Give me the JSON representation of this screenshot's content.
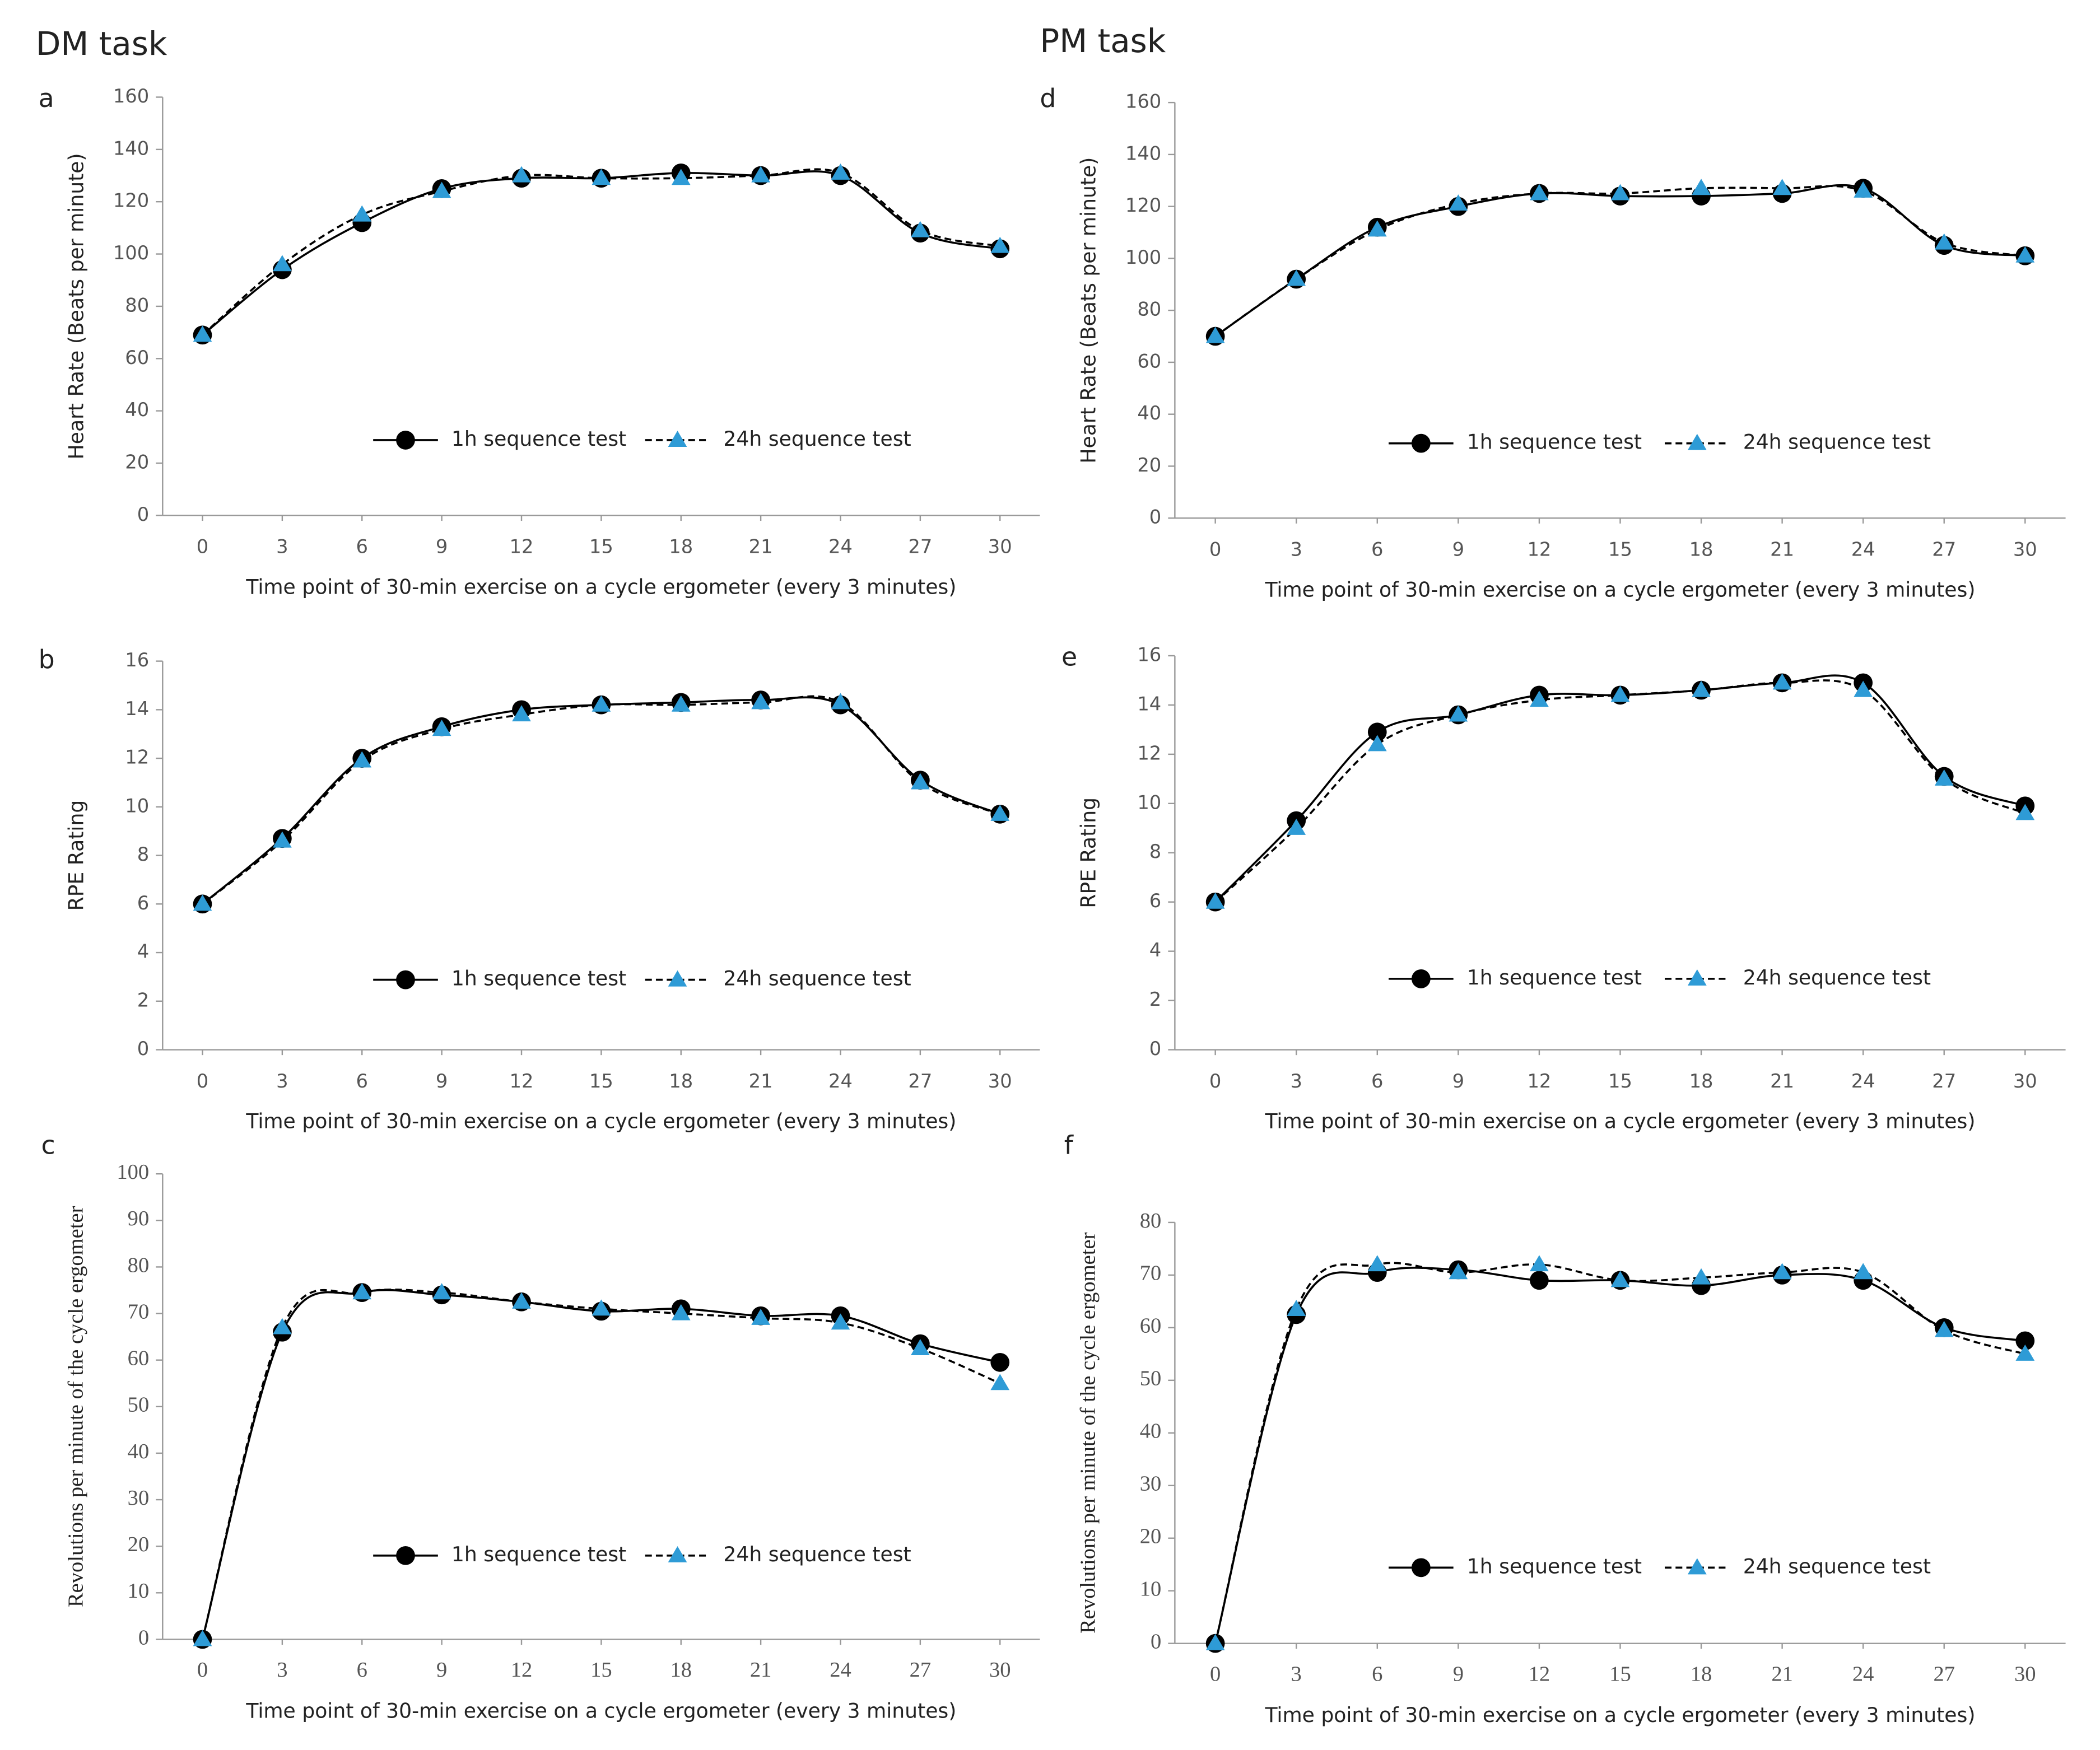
{
  "headings": [
    "DM task",
    "PM task"
  ],
  "chart_data": [
    {
      "type": "line",
      "panel_label": "a",
      "y_label": "Heart Rate (Beats per minute)",
      "x_label": "Time point of 30-min exercise on a cycle ergometer (every 3 minutes)",
      "x": [
        0,
        3,
        6,
        9,
        12,
        15,
        18,
        21,
        24,
        27,
        30
      ],
      "xlim": [
        -1.5,
        31.5
      ],
      "xticks": [
        0,
        3,
        6,
        9,
        12,
        15,
        18,
        21,
        24,
        27,
        30
      ],
      "ylim": [
        0,
        160
      ],
      "yticks": [
        0,
        20,
        40,
        60,
        80,
        100,
        120,
        140,
        160
      ],
      "series": [
        {
          "name": "1h sequence test",
          "color": "#000000",
          "marker": "circle",
          "linestyle": "solid",
          "values": [
            69,
            94,
            112,
            125,
            129,
            129,
            131,
            130,
            130,
            108,
            102
          ]
        },
        {
          "name": "24h sequence test",
          "color": "#2e9bd6",
          "marker": "triangle",
          "linestyle": "dashed",
          "values": [
            69,
            96,
            115,
            124,
            130,
            129,
            129,
            130,
            131,
            109,
            103
          ]
        }
      ]
    },
    {
      "type": "line",
      "panel_label": "b",
      "y_label": "RPE Rating",
      "x_label": "Time point of 30-min exercise on a cycle ergometer (every 3 minutes)",
      "x": [
        0,
        3,
        6,
        9,
        12,
        15,
        18,
        21,
        24,
        27,
        30
      ],
      "xlim": [
        -1.5,
        31.5
      ],
      "xticks": [
        0,
        3,
        6,
        9,
        12,
        15,
        18,
        21,
        24,
        27,
        30
      ],
      "ylim": [
        0,
        16
      ],
      "yticks": [
        0,
        2,
        4,
        6,
        8,
        10,
        12,
        14,
        16
      ],
      "series": [
        {
          "name": "1h sequence test",
          "color": "#000000",
          "marker": "circle",
          "linestyle": "solid",
          "values": [
            6,
            8.7,
            12,
            13.3,
            14,
            14.2,
            14.3,
            14.4,
            14.2,
            11.1,
            9.7
          ]
        },
        {
          "name": "24h sequence test",
          "color": "#2e9bd6",
          "marker": "triangle",
          "linestyle": "dashed",
          "values": [
            6,
            8.6,
            11.9,
            13.2,
            13.8,
            14.2,
            14.2,
            14.3,
            14.3,
            11,
            9.7
          ]
        }
      ]
    },
    {
      "type": "line",
      "panel_label": "c",
      "y_label": "Revolutions per minute of the cycle ergometer",
      "x_label": "Time point of 30-min exercise on a cycle ergometer (every 3 minutes)",
      "x": [
        0,
        3,
        6,
        9,
        12,
        15,
        18,
        21,
        24,
        27,
        30
      ],
      "xlim": [
        -1.5,
        31.5
      ],
      "xticks": [
        0,
        3,
        6,
        9,
        12,
        15,
        18,
        21,
        24,
        27,
        30
      ],
      "ylim": [
        0,
        100
      ],
      "yticks": [
        0,
        10,
        20,
        30,
        40,
        50,
        60,
        70,
        80,
        90,
        100
      ],
      "series": [
        {
          "name": "1h sequence test",
          "color": "#000000",
          "marker": "circle",
          "linestyle": "solid",
          "values": [
            0,
            66,
            74.5,
            74,
            72.5,
            70.5,
            71,
            69.5,
            69.5,
            63.5,
            59.5
          ]
        },
        {
          "name": "24h sequence test",
          "color": "#2e9bd6",
          "marker": "triangle",
          "linestyle": "dashed",
          "values": [
            0,
            67,
            74.5,
            74.5,
            72.5,
            71,
            70,
            69,
            68,
            62.5,
            55
          ]
        }
      ]
    },
    {
      "type": "line",
      "panel_label": "d",
      "y_label": "Heart Rate (Beats per minute)",
      "x_label": "Time point of 30-min exercise on a cycle ergometer (every 3 minutes)",
      "x": [
        0,
        3,
        6,
        9,
        12,
        15,
        18,
        21,
        24,
        27,
        30
      ],
      "xlim": [
        -1.5,
        31.5
      ],
      "xticks": [
        0,
        3,
        6,
        9,
        12,
        15,
        18,
        21,
        24,
        27,
        30
      ],
      "ylim": [
        0,
        160
      ],
      "yticks": [
        0,
        20,
        40,
        60,
        80,
        100,
        120,
        140,
        160
      ],
      "series": [
        {
          "name": "1h sequence test",
          "color": "#000000",
          "marker": "circle",
          "linestyle": "solid",
          "values": [
            70,
            92,
            112,
            120,
            125,
            124,
            124,
            125,
            127,
            105,
            101
          ]
        },
        {
          "name": "24h sequence test",
          "color": "#2e9bd6",
          "marker": "triangle",
          "linestyle": "dashed",
          "values": [
            70,
            92,
            111,
            121,
            125,
            125,
            127,
            127,
            126,
            106,
            101
          ]
        }
      ]
    },
    {
      "type": "line",
      "panel_label": "e",
      "y_label": "RPE Rating",
      "x_label": "Time point of 30-min exercise on a cycle ergometer (every 3 minutes)",
      "x": [
        0,
        3,
        6,
        9,
        12,
        15,
        18,
        21,
        24,
        27,
        30
      ],
      "xlim": [
        -1.5,
        31.5
      ],
      "xticks": [
        0,
        3,
        6,
        9,
        12,
        15,
        18,
        21,
        24,
        27,
        30
      ],
      "ylim": [
        0,
        16
      ],
      "yticks": [
        0,
        2,
        4,
        6,
        8,
        10,
        12,
        14,
        16
      ],
      "series": [
        {
          "name": "1h sequence test",
          "color": "#000000",
          "marker": "circle",
          "linestyle": "solid",
          "values": [
            6,
            9.3,
            12.9,
            13.6,
            14.4,
            14.4,
            14.6,
            14.9,
            14.9,
            11.1,
            9.9
          ]
        },
        {
          "name": "24h sequence test",
          "color": "#2e9bd6",
          "marker": "triangle",
          "linestyle": "dashed",
          "values": [
            6,
            9,
            12.4,
            13.6,
            14.2,
            14.4,
            14.6,
            14.9,
            14.6,
            11,
            9.6
          ]
        }
      ]
    },
    {
      "type": "line",
      "panel_label": "f",
      "y_label": "Revolutions per minute of the cycle ergometer",
      "x_label": "Time point of 30-min exercise on a cycle ergometer (every 3 minutes)",
      "x": [
        0,
        3,
        6,
        9,
        12,
        15,
        18,
        21,
        24,
        27,
        30
      ],
      "xlim": [
        -1.5,
        31.5
      ],
      "xticks": [
        0,
        3,
        6,
        9,
        12,
        15,
        18,
        21,
        24,
        27,
        30
      ],
      "ylim": [
        0,
        80
      ],
      "yticks": [
        0,
        10,
        20,
        30,
        40,
        50,
        60,
        70,
        80
      ],
      "series": [
        {
          "name": "1h sequence test",
          "color": "#000000",
          "marker": "circle",
          "linestyle": "solid",
          "values": [
            0,
            62.5,
            70.5,
            71,
            69,
            69,
            68,
            70,
            69,
            60,
            57.5
          ]
        },
        {
          "name": "24h sequence test",
          "color": "#2e9bd6",
          "marker": "triangle",
          "linestyle": "dashed",
          "values": [
            0,
            63.5,
            72,
            70.5,
            72,
            69,
            69.5,
            70.5,
            70.5,
            59.5,
            55
          ]
        }
      ]
    }
  ]
}
